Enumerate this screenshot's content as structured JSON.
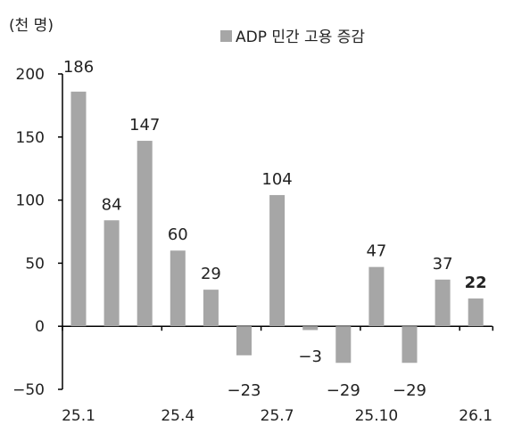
{
  "chart_data": {
    "type": "bar",
    "unit_label": "(천 명)",
    "categories": [
      "25.1",
      "25.2",
      "25.3",
      "25.4",
      "25.5",
      "25.6",
      "25.7",
      "25.8",
      "25.9",
      "25.10",
      "25.11",
      "25.12",
      "26.1"
    ],
    "x_tick_labels": [
      "25.1",
      "25.4",
      "25.7",
      "25.10",
      "26.1"
    ],
    "series": [
      {
        "name": "ADP 민간 고용 증감",
        "color": "#a6a6a6",
        "values": [
          186,
          84,
          147,
          60,
          29,
          -23,
          104,
          -3,
          -29,
          47,
          -29,
          37,
          22
        ]
      }
    ],
    "data_labels": [
      "186",
      "84",
      "147",
      "60",
      "29",
      "−23",
      "104",
      "−3",
      "−29",
      "47",
      "−29",
      "37",
      "22"
    ],
    "y_tick_labels": [
      "200",
      "150",
      "100",
      "50",
      "0",
      "−50"
    ],
    "y_ticks": [
      200,
      150,
      100,
      50,
      0,
      -50
    ],
    "ylim": [
      -50,
      200
    ],
    "grid": false,
    "legend_position": "top-right"
  }
}
